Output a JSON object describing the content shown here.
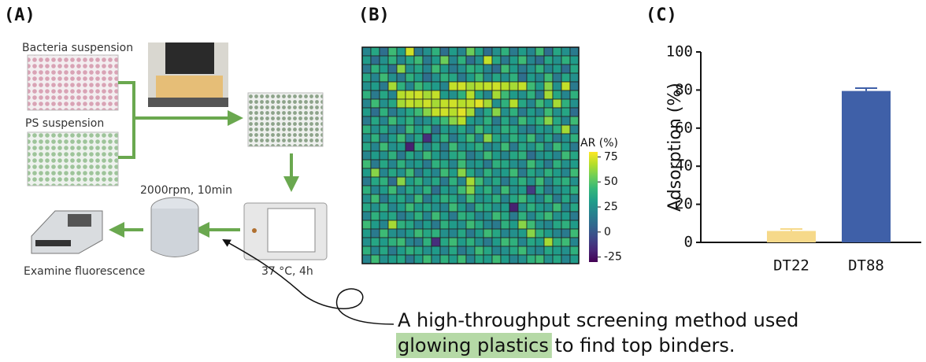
{
  "panels": [
    "(A)",
    "(B)",
    "(C)"
  ],
  "diagram": {
    "bacteria": "Bacteria suspension",
    "ps": "PS suspension",
    "centrifuge": "2000rpm, 10min",
    "incubate": "37 °C, 4h",
    "examine": "Examine fluorescence"
  },
  "caption": {
    "line1": "A high-throughput screening method used",
    "highlight": "glowing plastics",
    "rest": " to find top binders."
  },
  "chart_data": [
    {
      "type": "heatmap",
      "colormap": "viridis",
      "colorbar_label": "AR (%)",
      "zlim": [
        -30,
        80
      ],
      "zticks": [
        75,
        50,
        25,
        0,
        -25
      ],
      "values": [
        [
          20,
          35,
          10,
          45,
          30,
          72,
          15,
          25,
          40,
          10,
          30,
          20,
          55,
          35,
          10,
          25,
          40,
          15,
          30,
          20,
          45,
          10,
          35,
          25,
          15
        ],
        [
          30,
          10,
          25,
          40,
          20,
          35,
          45,
          15,
          30,
          55,
          20,
          40,
          10,
          25,
          70,
          35,
          15,
          30,
          45,
          20,
          10,
          35,
          25,
          40,
          30
        ],
        [
          15,
          40,
          30,
          10,
          60,
          25,
          35,
          20,
          45,
          30,
          15,
          25,
          40,
          35,
          20,
          10,
          45,
          30,
          15,
          25,
          40,
          20,
          30,
          10,
          35
        ],
        [
          35,
          20,
          45,
          25,
          15,
          40,
          30,
          10,
          25,
          40,
          35,
          15,
          30,
          45,
          20,
          35,
          25,
          40,
          10,
          30,
          20,
          45,
          15,
          35,
          25
        ],
        [
          25,
          30,
          15,
          65,
          40,
          20,
          45,
          35,
          30,
          20,
          70,
          72,
          65,
          68,
          70,
          72,
          68,
          65,
          70,
          45,
          30,
          60,
          25,
          70,
          15
        ],
        [
          40,
          15,
          35,
          20,
          68,
          70,
          72,
          65,
          70,
          30,
          25,
          40,
          68,
          35,
          20,
          65,
          45,
          30,
          25,
          40,
          15,
          65,
          35,
          20,
          40
        ],
        [
          20,
          45,
          25,
          35,
          65,
          70,
          68,
          72,
          65,
          70,
          72,
          68,
          70,
          75,
          65,
          25,
          40,
          68,
          35,
          20,
          45,
          30,
          65,
          40,
          25
        ],
        [
          30,
          10,
          40,
          15,
          25,
          35,
          45,
          60,
          70,
          72,
          68,
          75,
          65,
          20,
          35,
          60,
          25,
          40,
          15,
          30,
          20,
          45,
          25,
          35,
          10
        ],
        [
          15,
          35,
          20,
          45,
          30,
          40,
          20,
          25,
          35,
          45,
          60,
          68,
          30,
          25,
          40,
          15,
          35,
          20,
          45,
          30,
          40,
          60,
          35,
          20,
          45
        ],
        [
          40,
          25,
          35,
          20,
          15,
          45,
          30,
          40,
          10,
          30,
          25,
          35,
          20,
          45,
          30,
          25,
          40,
          35,
          20,
          15,
          30,
          25,
          40,
          65,
          20
        ],
        [
          25,
          40,
          15,
          30,
          45,
          20,
          35,
          -15,
          25,
          40,
          15,
          30,
          45,
          20,
          60,
          35,
          25,
          40,
          30,
          45,
          20,
          35,
          15,
          25,
          40
        ],
        [
          35,
          20,
          45,
          25,
          30,
          -20,
          40,
          20,
          35,
          15,
          45,
          25,
          30,
          40,
          20,
          25,
          45,
          15,
          35,
          25,
          40,
          20,
          45,
          30,
          15
        ],
        [
          20,
          30,
          25,
          40,
          15,
          35,
          25,
          45,
          30,
          20,
          35,
          40,
          15,
          25,
          45,
          30,
          20,
          35,
          40,
          10,
          25,
          30,
          20,
          45,
          35
        ],
        [
          45,
          15,
          35,
          20,
          40,
          25,
          30,
          15,
          40,
          35,
          20,
          45,
          25,
          30,
          15,
          40,
          35,
          25,
          20,
          45,
          30,
          15,
          40,
          25,
          30
        ],
        [
          30,
          60,
          20,
          35,
          25,
          45,
          15,
          30,
          20,
          45,
          30,
          60,
          35,
          20,
          40,
          25,
          30,
          45,
          15,
          35,
          25,
          40,
          30,
          20,
          45
        ],
        [
          15,
          35,
          40,
          10,
          60,
          30,
          40,
          25,
          35,
          15,
          40,
          20,
          65,
          45,
          25,
          35,
          15,
          30,
          40,
          25,
          45,
          20,
          35,
          40,
          25
        ],
        [
          40,
          20,
          30,
          45,
          20,
          35,
          25,
          40,
          10,
          30,
          25,
          45,
          60,
          30,
          40,
          20,
          45,
          25,
          30,
          -10,
          35,
          15,
          25,
          30,
          40
        ],
        [
          25,
          45,
          15,
          30,
          35,
          20,
          45,
          15,
          30,
          40,
          35,
          20,
          45,
          25,
          30,
          40,
          20,
          35,
          45,
          30,
          20,
          40,
          15,
          35,
          20
        ],
        [
          35,
          25,
          40,
          20,
          30,
          45,
          30,
          35,
          25,
          20,
          45,
          30,
          15,
          40,
          35,
          25,
          30,
          -20,
          25,
          40,
          30,
          25,
          45,
          20,
          35
        ],
        [
          20,
          40,
          30,
          35,
          15,
          25,
          40,
          20,
          45,
          30,
          15,
          40,
          35,
          20,
          25,
          45,
          35,
          15,
          40,
          20,
          35,
          45,
          25,
          30,
          15
        ],
        [
          45,
          30,
          20,
          65,
          40,
          35,
          20,
          30,
          15,
          40,
          30,
          25,
          45,
          35,
          20,
          15,
          40,
          30,
          60,
          45,
          25,
          20,
          35,
          40,
          30
        ],
        [
          30,
          15,
          45,
          25,
          20,
          30,
          45,
          35,
          40,
          25,
          20,
          35,
          15,
          30,
          45,
          35,
          20,
          25,
          30,
          60,
          40,
          30,
          20,
          15,
          45
        ],
        [
          25,
          35,
          30,
          40,
          45,
          20,
          15,
          40,
          -15,
          35,
          45,
          30,
          40,
          25,
          15,
          30,
          45,
          40,
          20,
          35,
          30,
          65,
          40,
          45,
          20
        ],
        [
          40,
          20,
          35,
          15,
          30,
          40,
          35,
          25,
          30,
          20,
          35,
          15,
          25,
          45,
          35,
          20,
          25,
          35,
          45,
          25,
          20,
          35,
          30,
          25,
          40
        ],
        [
          20,
          45,
          25,
          30,
          35,
          15,
          30,
          45,
          25,
          40,
          30,
          45,
          20,
          35,
          30,
          45,
          30,
          20,
          25,
          40,
          45,
          25,
          35,
          20,
          30
        ]
      ]
    },
    {
      "type": "bar",
      "ylabel": "Adsorption (%)",
      "categories": [
        "DT22",
        "DT88"
      ],
      "values": [
        6,
        79.5
      ],
      "errors": [
        1,
        1.5
      ],
      "colors": [
        "#f6d98a",
        "#3f60a8"
      ],
      "ylim": [
        0,
        100
      ],
      "yticks": [
        0,
        20,
        40,
        60,
        80,
        100
      ]
    }
  ]
}
